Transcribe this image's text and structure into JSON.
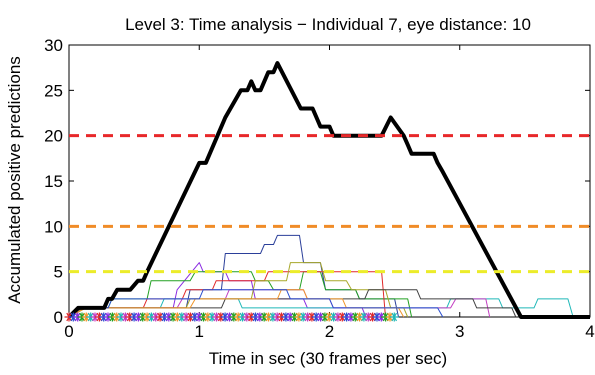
{
  "chart_data": {
    "type": "line",
    "title": "Level 3: Time analysis − Individual 7, eye distance: 10",
    "xlabel": "Time in sec (30 frames per sec)",
    "ylabel": "Accumulated positive predictions",
    "xlim": [
      0,
      4
    ],
    "ylim": [
      0,
      30
    ],
    "x_ticks": [
      0,
      1,
      2,
      3,
      4
    ],
    "y_ticks": [
      0,
      5,
      10,
      15,
      20,
      25,
      30
    ],
    "grid": false,
    "legend": "none",
    "thresholds": [
      {
        "y": 20,
        "color": "#e8282a",
        "style": "dashed"
      },
      {
        "y": 10,
        "color": "#f08c28",
        "style": "dashed"
      },
      {
        "y": 5,
        "color": "#ecec2a",
        "style": "dashed"
      }
    ],
    "series": [
      {
        "color": "#000000",
        "width": 4,
        "points": [
          [
            0,
            0
          ],
          [
            0.07,
            1
          ],
          [
            0.27,
            1
          ],
          [
            0.3,
            2
          ],
          [
            0.33,
            2
          ],
          [
            0.37,
            3
          ],
          [
            0.47,
            3
          ],
          [
            0.53,
            4
          ],
          [
            0.57,
            4
          ],
          [
            0.6,
            5
          ],
          [
            1.0,
            17
          ],
          [
            1.05,
            17
          ],
          [
            1.2,
            22
          ],
          [
            1.32,
            25
          ],
          [
            1.37,
            25
          ],
          [
            1.4,
            26
          ],
          [
            1.43,
            25
          ],
          [
            1.47,
            25
          ],
          [
            1.53,
            27
          ],
          [
            1.57,
            27
          ],
          [
            1.6,
            28
          ],
          [
            1.78,
            23
          ],
          [
            1.87,
            23
          ],
          [
            1.9,
            22
          ],
          [
            1.93,
            21
          ],
          [
            2.0,
            21
          ],
          [
            2.03,
            20
          ],
          [
            2.4,
            20
          ],
          [
            2.47,
            22
          ],
          [
            2.57,
            20
          ],
          [
            2.6,
            19
          ],
          [
            2.63,
            18
          ],
          [
            2.8,
            18
          ],
          [
            2.83,
            17
          ],
          [
            2.87,
            16
          ],
          [
            3.47,
            0
          ],
          [
            4.0,
            0
          ]
        ]
      },
      {
        "color": "#2b3f9a",
        "width": 1,
        "points": [
          [
            0,
            0
          ],
          [
            0.07,
            1
          ],
          [
            0.9,
            1
          ],
          [
            0.93,
            3
          ],
          [
            1.17,
            3
          ],
          [
            1.2,
            7
          ],
          [
            1.47,
            7
          ],
          [
            1.5,
            8
          ],
          [
            1.57,
            8
          ],
          [
            1.6,
            9
          ],
          [
            1.77,
            9
          ],
          [
            1.8,
            6
          ],
          [
            1.93,
            6
          ],
          [
            1.97,
            3
          ],
          [
            2.2,
            3
          ],
          [
            2.23,
            2
          ],
          [
            2.5,
            2
          ],
          [
            2.53,
            0
          ]
        ]
      },
      {
        "color": "#8a2be2",
        "width": 1,
        "points": [
          [
            0,
            0
          ],
          [
            0.07,
            1
          ],
          [
            0.8,
            1
          ],
          [
            0.83,
            3
          ],
          [
            1.0,
            6
          ],
          [
            1.03,
            5
          ],
          [
            1.2,
            5
          ],
          [
            1.23,
            4
          ],
          [
            1.4,
            4
          ],
          [
            1.43,
            2
          ],
          [
            1.8,
            2
          ],
          [
            1.83,
            1
          ],
          [
            2.25,
            1
          ],
          [
            2.28,
            0
          ]
        ]
      },
      {
        "color": "#22a022",
        "width": 1,
        "points": [
          [
            0,
            0
          ],
          [
            0.07,
            1
          ],
          [
            0.3,
            1
          ],
          [
            0.33,
            2
          ],
          [
            0.6,
            2
          ],
          [
            0.63,
            4
          ],
          [
            0.93,
            4
          ],
          [
            0.97,
            5
          ],
          [
            1.4,
            5
          ],
          [
            1.43,
            4
          ],
          [
            1.53,
            4
          ],
          [
            1.57,
            3
          ],
          [
            1.77,
            3
          ],
          [
            1.8,
            5
          ],
          [
            1.93,
            5
          ],
          [
            1.97,
            3
          ],
          [
            2.2,
            3
          ],
          [
            2.23,
            2
          ],
          [
            2.6,
            2
          ],
          [
            2.63,
            0
          ]
        ]
      },
      {
        "color": "#e0282a",
        "width": 1,
        "points": [
          [
            0,
            0
          ],
          [
            0.1,
            1
          ],
          [
            0.57,
            1
          ],
          [
            0.6,
            2
          ],
          [
            0.87,
            2
          ],
          [
            0.9,
            3
          ],
          [
            1.1,
            3
          ],
          [
            1.13,
            4
          ],
          [
            1.5,
            4
          ],
          [
            1.53,
            5
          ],
          [
            2.4,
            5
          ],
          [
            2.43,
            0
          ]
        ]
      },
      {
        "color": "#1fb8b8",
        "width": 1,
        "points": [
          [
            0,
            0
          ],
          [
            0.13,
            1
          ],
          [
            0.7,
            1
          ],
          [
            0.73,
            2
          ],
          [
            1.3,
            2
          ],
          [
            1.33,
            1
          ],
          [
            2.9,
            1
          ],
          [
            2.93,
            2
          ],
          [
            3.3,
            2
          ],
          [
            3.33,
            1
          ],
          [
            3.57,
            1
          ],
          [
            3.6,
            2
          ],
          [
            3.83,
            2
          ],
          [
            3.87,
            0
          ]
        ]
      },
      {
        "color": "#c23fc2",
        "width": 1,
        "points": [
          [
            0,
            0
          ],
          [
            0.1,
            1
          ],
          [
            0.83,
            1
          ],
          [
            0.87,
            2
          ],
          [
            1.2,
            2
          ],
          [
            1.23,
            3
          ],
          [
            1.8,
            3
          ],
          [
            1.83,
            2
          ],
          [
            2.0,
            2
          ],
          [
            2.03,
            1
          ],
          [
            2.93,
            1
          ],
          [
            2.97,
            2
          ],
          [
            3.2,
            2
          ],
          [
            3.23,
            0
          ]
        ]
      },
      {
        "color": "#a8a82a",
        "width": 1,
        "points": [
          [
            0,
            0
          ],
          [
            0.12,
            1
          ],
          [
            0.9,
            1
          ],
          [
            0.93,
            2
          ],
          [
            1.4,
            2
          ],
          [
            1.43,
            4
          ],
          [
            1.67,
            4
          ],
          [
            1.7,
            6
          ],
          [
            1.93,
            6
          ],
          [
            1.97,
            4
          ],
          [
            2.13,
            4
          ],
          [
            2.17,
            3
          ],
          [
            2.43,
            3
          ],
          [
            2.47,
            1
          ],
          [
            2.57,
            1
          ],
          [
            2.6,
            0
          ]
        ]
      },
      {
        "color": "#404040",
        "width": 1,
        "points": [
          [
            0,
            0
          ],
          [
            0.1,
            1
          ],
          [
            1.17,
            1
          ],
          [
            1.2,
            2
          ],
          [
            2.27,
            2
          ],
          [
            2.3,
            3
          ],
          [
            2.67,
            3
          ],
          [
            2.7,
            2
          ],
          [
            3.1,
            2
          ],
          [
            3.13,
            1
          ],
          [
            3.4,
            1
          ],
          [
            3.43,
            0
          ]
        ]
      },
      {
        "color": "#f0962a",
        "width": 1,
        "points": [
          [
            0,
            0
          ],
          [
            0.13,
            1
          ],
          [
            0.93,
            1
          ],
          [
            0.97,
            2
          ],
          [
            1.6,
            2
          ],
          [
            1.63,
            3
          ],
          [
            1.8,
            3
          ],
          [
            1.83,
            2
          ],
          [
            2.1,
            2
          ],
          [
            2.13,
            1
          ],
          [
            2.53,
            1
          ],
          [
            2.57,
            0
          ]
        ]
      },
      {
        "color": "#2a4fd0",
        "width": 1,
        "points": [
          [
            0,
            0
          ],
          [
            0.07,
            1
          ],
          [
            0.3,
            1
          ],
          [
            0.33,
            2
          ],
          [
            1.0,
            2
          ],
          [
            1.03,
            3
          ],
          [
            1.67,
            3
          ],
          [
            1.7,
            2
          ],
          [
            2.0,
            2
          ],
          [
            2.03,
            1
          ],
          [
            2.83,
            1
          ],
          [
            2.87,
            0
          ]
        ]
      }
    ],
    "markers": {
      "y": 0,
      "x_start": 0.0,
      "x_end": 2.5,
      "step": 0.0333,
      "colors": [
        "#e0282a",
        "#2a4fd0",
        "#8a2be2",
        "#22a022",
        "#f0962a",
        "#1fb8b8",
        "#c23fc2"
      ]
    }
  }
}
